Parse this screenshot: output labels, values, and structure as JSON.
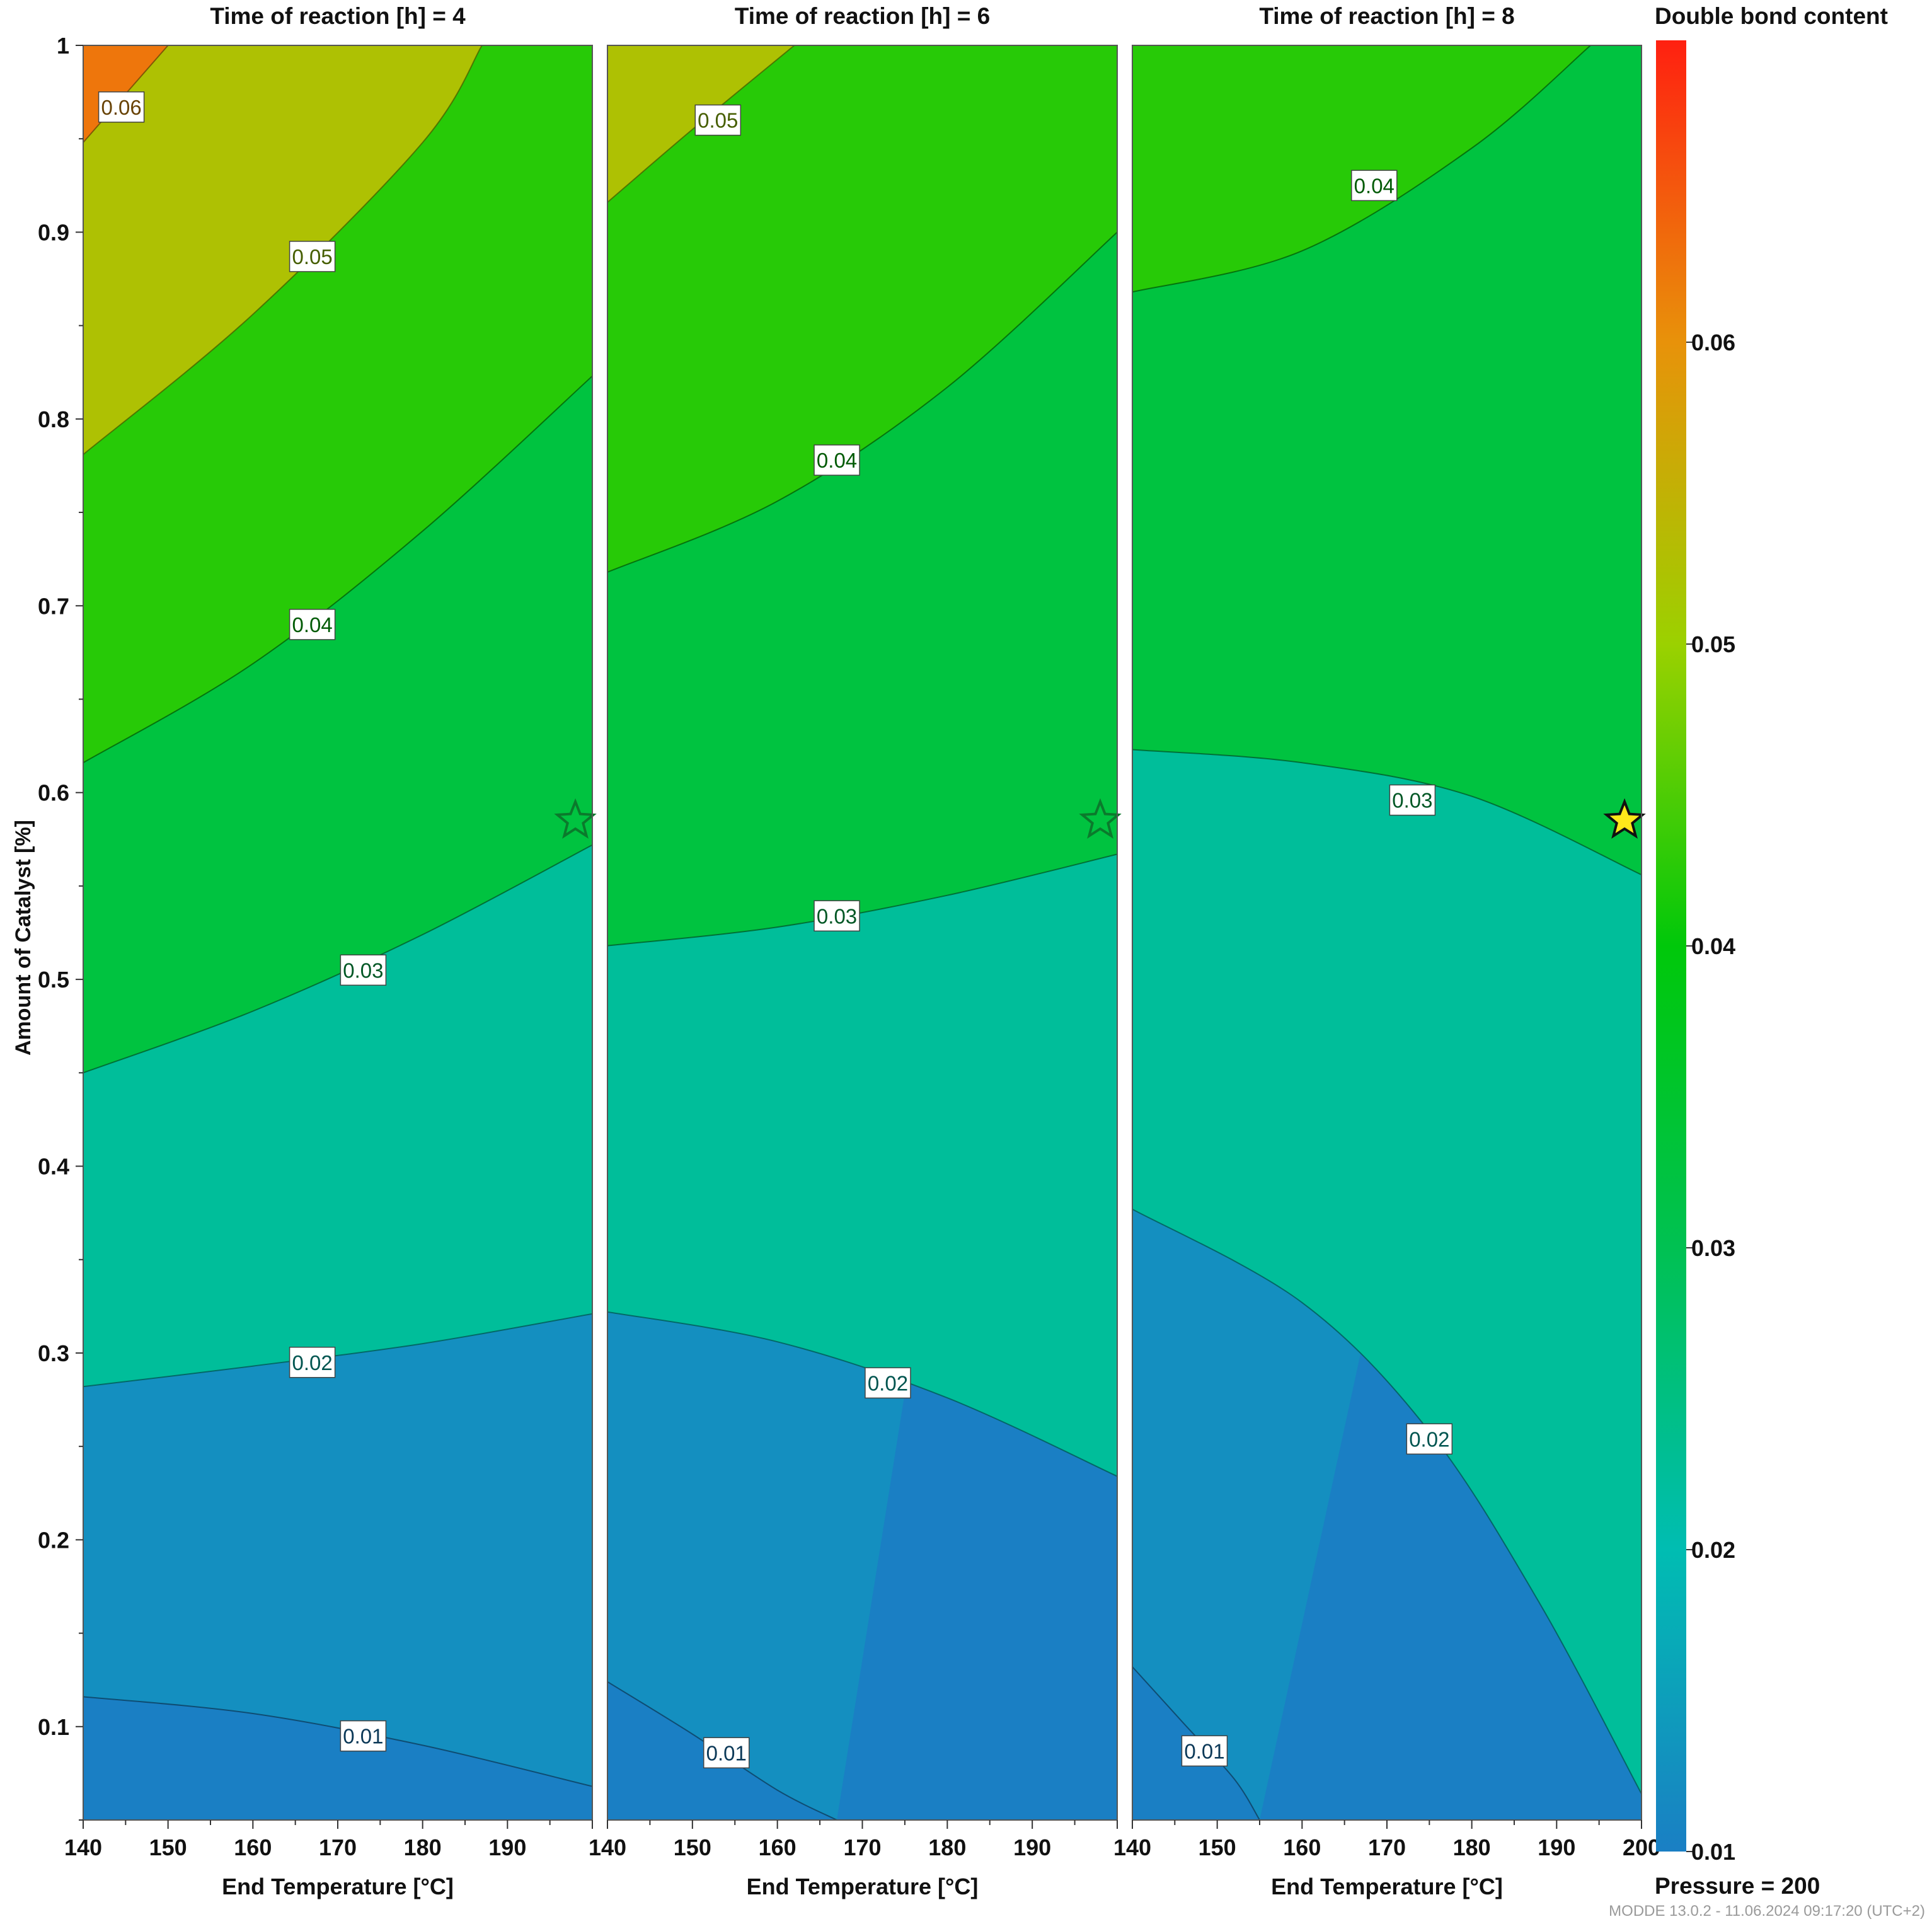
{
  "chart_data": {
    "type": "contour",
    "response": "Double bond content",
    "ylabel": "Amount of Catalyst [%]",
    "xlim": [
      140,
      200
    ],
    "ylim": [
      0.05,
      1
    ],
    "x_ticks": [
      140,
      150,
      160,
      170,
      180,
      190,
      200
    ],
    "y_ticks": [
      0.1,
      0.2,
      0.3,
      0.4,
      0.5,
      0.6,
      0.7,
      0.8,
      0.9,
      1
    ],
    "y_tick_labels": [
      "0.1",
      "0.2",
      "0.3",
      "0.4",
      "0.5",
      "0.6",
      "0.7",
      "0.8",
      "0.9",
      "1"
    ],
    "colorbar": {
      "title": "Double bond content",
      "range": [
        0.01,
        0.07
      ],
      "ticks": [
        "0.01",
        "0.02",
        "0.03",
        "0.04",
        "0.05",
        "0.06"
      ],
      "stops": [
        {
          "value": 0.01,
          "color": "#1a7fc4"
        },
        {
          "value": 0.02,
          "color": "#00bdb2"
        },
        {
          "value": 0.03,
          "color": "#00c152"
        },
        {
          "value": 0.04,
          "color": "#00c80a"
        },
        {
          "value": 0.05,
          "color": "#9bd100"
        },
        {
          "value": 0.06,
          "color": "#e8920a"
        },
        {
          "value": 0.07,
          "color": "#ff2010"
        }
      ]
    },
    "footer_note": "Pressure = 200",
    "watermark": "MODDE 13.0.2 - 11.06.2024 09:17:20 (UTC+2)",
    "optimum_point": {
      "x": 198,
      "y": 0.585
    },
    "panels": [
      {
        "title": "Time of reaction [h] = 4",
        "xlabel": "End Temperature [°C]",
        "x_tick_labels": [
          "140",
          "150",
          "160",
          "170",
          "180",
          "190",
          ""
        ],
        "star_filled": false,
        "contours": [
          {
            "level": 0.01,
            "points": [
              [
                140,
                0.116
              ],
              [
                160,
                0.107
              ],
              [
                180,
                0.09
              ],
              [
                200,
                0.068
              ]
            ]
          },
          {
            "level": 0.02,
            "points": [
              [
                140,
                0.282
              ],
              [
                160,
                0.293
              ],
              [
                180,
                0.305
              ],
              [
                200,
                0.321
              ]
            ]
          },
          {
            "level": 0.03,
            "points": [
              [
                140,
                0.45
              ],
              [
                160,
                0.483
              ],
              [
                180,
                0.524
              ],
              [
                200,
                0.572
              ]
            ]
          },
          {
            "level": 0.04,
            "points": [
              [
                140,
                0.616
              ],
              [
                160,
                0.669
              ],
              [
                180,
                0.74
              ],
              [
                200,
                0.823
              ]
            ]
          },
          {
            "level": 0.05,
            "points": [
              [
                140,
                0.781
              ],
              [
                160,
                0.856
              ],
              [
                180,
                0.948
              ],
              [
                187,
                1.0
              ]
            ]
          },
          {
            "level": 0.06,
            "points": [
              [
                140,
                0.948
              ],
              [
                150,
                1.0
              ]
            ]
          }
        ],
        "labels": [
          {
            "text": "0.06",
            "x": 144.5,
            "y": 0.967,
            "level": 0.06
          },
          {
            "text": "0.05",
            "x": 167,
            "y": 0.887,
            "level": 0.05
          },
          {
            "text": "0.04",
            "x": 167,
            "y": 0.69,
            "level": 0.04
          },
          {
            "text": "0.03",
            "x": 173,
            "y": 0.505,
            "level": 0.03
          },
          {
            "text": "0.02",
            "x": 167,
            "y": 0.295,
            "level": 0.02
          },
          {
            "text": "0.01",
            "x": 173,
            "y": 0.095,
            "level": 0.01
          }
        ]
      },
      {
        "title": "Time of reaction [h] = 6",
        "xlabel": "End Temperature [°C]",
        "x_tick_labels": [
          "140",
          "150",
          "160",
          "170",
          "180",
          "190",
          ""
        ],
        "star_filled": false,
        "contours": [
          {
            "level": 0.01,
            "points": [
              [
                140,
                0.124
              ],
              [
                150,
                0.096
              ],
              [
                160,
                0.066
              ],
              [
                167,
                0.05
              ]
            ]
          },
          {
            "level": 0.02,
            "points": [
              [
                140,
                0.322
              ],
              [
                160,
                0.306
              ],
              [
                180,
                0.276
              ],
              [
                200,
                0.234
              ]
            ]
          },
          {
            "level": 0.03,
            "points": [
              [
                140,
                0.518
              ],
              [
                160,
                0.528
              ],
              [
                180,
                0.545
              ],
              [
                200,
                0.567
              ]
            ]
          },
          {
            "level": 0.04,
            "points": [
              [
                140,
                0.718
              ],
              [
                160,
                0.756
              ],
              [
                180,
                0.817
              ],
              [
                200,
                0.9
              ]
            ]
          },
          {
            "level": 0.05,
            "points": [
              [
                140,
                0.916
              ],
              [
                150,
                0.955
              ],
              [
                162,
                1.0
              ]
            ]
          }
        ],
        "labels": [
          {
            "text": "0.05",
            "x": 153,
            "y": 0.96,
            "level": 0.05
          },
          {
            "text": "0.04",
            "x": 167,
            "y": 0.778,
            "level": 0.04
          },
          {
            "text": "0.03",
            "x": 167,
            "y": 0.534,
            "level": 0.03
          },
          {
            "text": "0.02",
            "x": 173,
            "y": 0.284,
            "level": 0.02
          },
          {
            "text": "0.01",
            "x": 154,
            "y": 0.086,
            "level": 0.01
          }
        ]
      },
      {
        "title": "Time of reaction [h] = 8",
        "xlabel": "End Temperature [°C]",
        "x_tick_labels": [
          "140",
          "150",
          "160",
          "170",
          "180",
          "190",
          "200"
        ],
        "star_filled": true,
        "contours": [
          {
            "level": 0.01,
            "points": [
              [
                140,
                0.132
              ],
              [
                146,
                0.102
              ],
              [
                152,
                0.072
              ],
              [
                155,
                0.05
              ]
            ]
          },
          {
            "level": 0.02,
            "points": [
              [
                140,
                0.377
              ],
              [
                160,
                0.327
              ],
              [
                175,
                0.258
              ],
              [
                188,
                0.166
              ],
              [
                200,
                0.064
              ]
            ]
          },
          {
            "level": 0.03,
            "points": [
              [
                140,
                0.623
              ],
              [
                160,
                0.616
              ],
              [
                180,
                0.598
              ],
              [
                200,
                0.556
              ]
            ]
          },
          {
            "level": 0.04,
            "points": [
              [
                140,
                0.868
              ],
              [
                160,
                0.89
              ],
              [
                180,
                0.945
              ],
              [
                194,
                1.0
              ]
            ]
          }
        ],
        "labels": [
          {
            "text": "0.04",
            "x": 168.5,
            "y": 0.925,
            "level": 0.04
          },
          {
            "text": "0.03",
            "x": 173,
            "y": 0.596,
            "level": 0.03
          },
          {
            "text": "0.02",
            "x": 175,
            "y": 0.254,
            "level": 0.02
          },
          {
            "text": "0.01",
            "x": 148.5,
            "y": 0.087,
            "level": 0.01
          }
        ]
      }
    ]
  }
}
